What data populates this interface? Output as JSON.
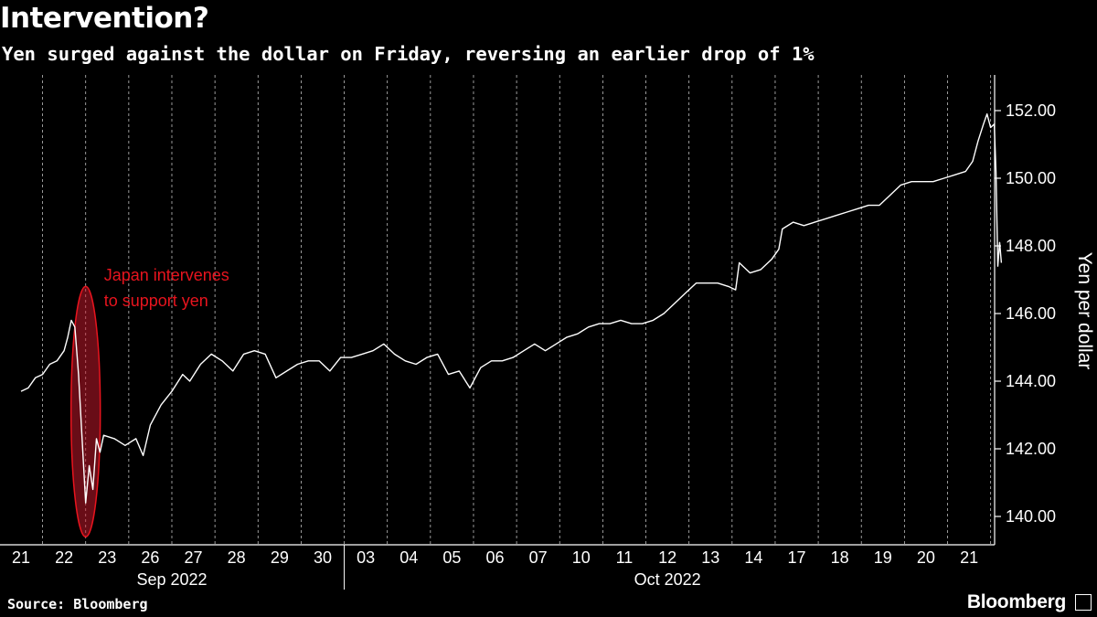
{
  "header": {
    "title": "Intervention?",
    "subtitle": "Yen surged against the dollar on Friday, reversing an earlier drop of 1%"
  },
  "footer": {
    "source": "Source: Bloomberg",
    "brand": "Bloomberg"
  },
  "colors": {
    "background": "#000000",
    "line": "#ffffff",
    "annotation": "#e8141e",
    "grid": "#ffffff"
  },
  "chart_data": {
    "type": "line",
    "title": "Intervention?",
    "subtitle": "Yen surged against the dollar on Friday, reversing an earlier drop of 1%",
    "ylabel": "Yen per dollar",
    "y_axis_position": "right",
    "ylim": [
      139.4,
      153.0
    ],
    "y_ticks": [
      140,
      142,
      144,
      146,
      148,
      150,
      152
    ],
    "y_tick_labels": [
      "140.00",
      "142.00",
      "144.00",
      "146.00",
      "148.00",
      "150.00",
      "152.00"
    ],
    "grid": "vertical dashed",
    "x_ticks": [
      "21",
      "22",
      "23",
      "26",
      "27",
      "28",
      "29",
      "30",
      "03",
      "04",
      "05",
      "06",
      "07",
      "10",
      "11",
      "12",
      "13",
      "14",
      "17",
      "18",
      "19",
      "20",
      "21"
    ],
    "x_periods": [
      {
        "label": "Sep 2022",
        "start": "2022-09-21",
        "end": "2022-09-30"
      },
      {
        "label": "Oct 2022",
        "start": "2022-10-03",
        "end": "2022-10-21"
      }
    ],
    "x_dates": [
      "2022-09-21",
      "2022-09-22",
      "2022-09-23",
      "2022-09-26",
      "2022-09-27",
      "2022-09-28",
      "2022-09-29",
      "2022-09-30",
      "2022-10-03",
      "2022-10-04",
      "2022-10-05",
      "2022-10-06",
      "2022-10-07",
      "2022-10-10",
      "2022-10-11",
      "2022-10-12",
      "2022-10-13",
      "2022-10-14",
      "2022-10-17",
      "2022-10-18",
      "2022-10-19",
      "2022-10-20",
      "2022-10-21"
    ],
    "series": [
      {
        "values": [
          [
            "2022-09-21T00:00",
            143.7
          ],
          [
            "2022-09-21T04:00",
            143.8
          ],
          [
            "2022-09-21T08:00",
            144.1
          ],
          [
            "2022-09-21T12:00",
            144.2
          ],
          [
            "2022-09-21T16:00",
            144.5
          ],
          [
            "2022-09-21T20:00",
            144.6
          ],
          [
            "2022-09-22T00:00",
            144.9
          ],
          [
            "2022-09-22T02:00",
            145.3
          ],
          [
            "2022-09-22T04:00",
            145.8
          ],
          [
            "2022-09-22T06:00",
            145.6
          ],
          [
            "2022-09-22T08:00",
            144.2
          ],
          [
            "2022-09-22T10:00",
            142.3
          ],
          [
            "2022-09-22T12:00",
            140.4
          ],
          [
            "2022-09-22T14:00",
            141.5
          ],
          [
            "2022-09-22T16:00",
            140.8
          ],
          [
            "2022-09-22T18:00",
            142.3
          ],
          [
            "2022-09-22T20:00",
            141.9
          ],
          [
            "2022-09-22T22:00",
            142.4
          ],
          [
            "2022-09-23T04:00",
            142.3
          ],
          [
            "2022-09-23T10:00",
            142.1
          ],
          [
            "2022-09-23T16:00",
            142.3
          ],
          [
            "2022-09-23T20:00",
            141.8
          ],
          [
            "2022-09-26T00:00",
            142.7
          ],
          [
            "2022-09-26T06:00",
            143.3
          ],
          [
            "2022-09-26T12:00",
            143.7
          ],
          [
            "2022-09-26T18:00",
            144.2
          ],
          [
            "2022-09-26T22:00",
            144.0
          ],
          [
            "2022-09-27T04:00",
            144.5
          ],
          [
            "2022-09-27T10:00",
            144.8
          ],
          [
            "2022-09-27T16:00",
            144.6
          ],
          [
            "2022-09-27T22:00",
            144.3
          ],
          [
            "2022-09-28T04:00",
            144.8
          ],
          [
            "2022-09-28T10:00",
            144.9
          ],
          [
            "2022-09-28T16:00",
            144.8
          ],
          [
            "2022-09-28T22:00",
            144.1
          ],
          [
            "2022-09-29T04:00",
            144.3
          ],
          [
            "2022-09-29T10:00",
            144.5
          ],
          [
            "2022-09-29T16:00",
            144.6
          ],
          [
            "2022-09-29T22:00",
            144.6
          ],
          [
            "2022-09-30T04:00",
            144.3
          ],
          [
            "2022-09-30T10:00",
            144.7
          ],
          [
            "2022-09-30T16:00",
            144.7
          ],
          [
            "2022-09-30T22:00",
            144.8
          ],
          [
            "2022-10-03T04:00",
            144.9
          ],
          [
            "2022-10-03T10:00",
            145.1
          ],
          [
            "2022-10-03T16:00",
            144.8
          ],
          [
            "2022-10-03T22:00",
            144.6
          ],
          [
            "2022-10-04T04:00",
            144.5
          ],
          [
            "2022-10-04T10:00",
            144.7
          ],
          [
            "2022-10-04T16:00",
            144.8
          ],
          [
            "2022-10-04T22:00",
            144.2
          ],
          [
            "2022-10-05T04:00",
            144.3
          ],
          [
            "2022-10-05T10:00",
            143.8
          ],
          [
            "2022-10-05T16:00",
            144.4
          ],
          [
            "2022-10-05T22:00",
            144.6
          ],
          [
            "2022-10-06T04:00",
            144.6
          ],
          [
            "2022-10-06T10:00",
            144.7
          ],
          [
            "2022-10-06T16:00",
            144.9
          ],
          [
            "2022-10-06T22:00",
            145.1
          ],
          [
            "2022-10-07T04:00",
            144.9
          ],
          [
            "2022-10-07T10:00",
            145.1
          ],
          [
            "2022-10-07T16:00",
            145.3
          ],
          [
            "2022-10-07T22:00",
            145.4
          ],
          [
            "2022-10-10T04:00",
            145.6
          ],
          [
            "2022-10-10T10:00",
            145.7
          ],
          [
            "2022-10-10T16:00",
            145.7
          ],
          [
            "2022-10-10T22:00",
            145.8
          ],
          [
            "2022-10-11T04:00",
            145.7
          ],
          [
            "2022-10-11T10:00",
            145.7
          ],
          [
            "2022-10-11T16:00",
            145.8
          ],
          [
            "2022-10-11T22:00",
            146.0
          ],
          [
            "2022-10-12T04:00",
            146.3
          ],
          [
            "2022-10-12T10:00",
            146.6
          ],
          [
            "2022-10-12T16:00",
            146.9
          ],
          [
            "2022-10-12T22:00",
            146.9
          ],
          [
            "2022-10-13T04:00",
            146.9
          ],
          [
            "2022-10-13T10:00",
            146.8
          ],
          [
            "2022-10-13T14:00",
            146.7
          ],
          [
            "2022-10-13T16:00",
            147.5
          ],
          [
            "2022-10-13T22:00",
            147.2
          ],
          [
            "2022-10-14T04:00",
            147.3
          ],
          [
            "2022-10-14T10:00",
            147.6
          ],
          [
            "2022-10-14T14:00",
            147.9
          ],
          [
            "2022-10-14T16:00",
            148.5
          ],
          [
            "2022-10-14T22:00",
            148.7
          ],
          [
            "2022-10-17T04:00",
            148.6
          ],
          [
            "2022-10-17T10:00",
            148.7
          ],
          [
            "2022-10-17T16:00",
            148.8
          ],
          [
            "2022-10-17T22:00",
            148.9
          ],
          [
            "2022-10-18T04:00",
            149.0
          ],
          [
            "2022-10-18T10:00",
            149.1
          ],
          [
            "2022-10-18T16:00",
            149.2
          ],
          [
            "2022-10-18T22:00",
            149.2
          ],
          [
            "2022-10-19T04:00",
            149.5
          ],
          [
            "2022-10-19T10:00",
            149.8
          ],
          [
            "2022-10-19T16:00",
            149.9
          ],
          [
            "2022-10-19T22:00",
            149.9
          ],
          [
            "2022-10-20T04:00",
            149.9
          ],
          [
            "2022-10-20T10:00",
            150.0
          ],
          [
            "2022-10-20T16:00",
            150.1
          ],
          [
            "2022-10-20T22:00",
            150.2
          ],
          [
            "2022-10-21T02:00",
            150.5
          ],
          [
            "2022-10-21T05:00",
            151.1
          ],
          [
            "2022-10-21T08:00",
            151.6
          ],
          [
            "2022-10-21T10:00",
            151.9
          ],
          [
            "2022-10-21T12:00",
            151.5
          ],
          [
            "2022-10-21T14:00",
            151.6
          ],
          [
            "2022-10-21T15:00",
            150.2
          ],
          [
            "2022-10-21T16:00",
            147.4
          ],
          [
            "2022-10-21T17:00",
            148.1
          ],
          [
            "2022-10-21T18:00",
            147.5
          ]
        ]
      }
    ],
    "annotations": [
      {
        "text_lines": [
          "Japan intervenes",
          "to support yen"
        ],
        "date": "2022-09-22",
        "y_range": [
          139.4,
          146.8
        ],
        "shape": "ellipse"
      }
    ]
  }
}
